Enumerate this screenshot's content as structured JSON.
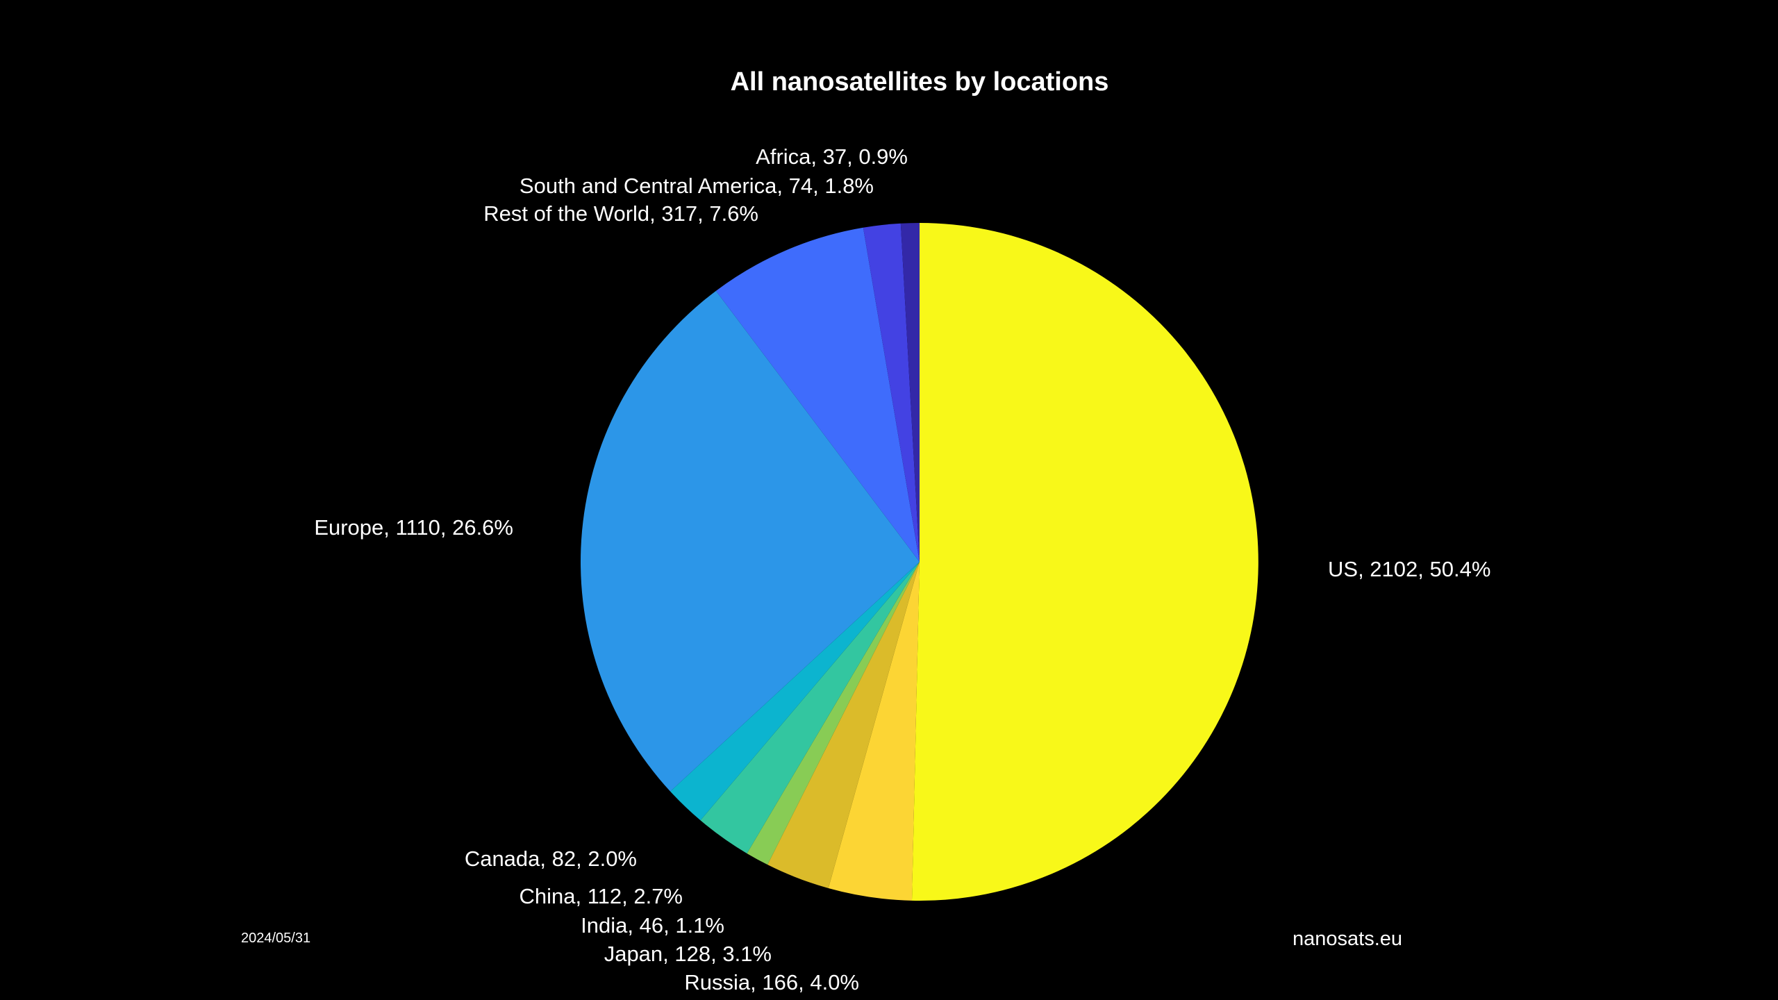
{
  "chart_data": {
    "type": "pie",
    "title": "All nanosatellites by locations",
    "start_angle": "top",
    "direction": "clockwise",
    "slices": [
      {
        "name": "US",
        "value": 2102,
        "percent": "50.4%",
        "label": "US, 2102, 50.4%",
        "color": "#f8f819"
      },
      {
        "name": "Russia",
        "value": 166,
        "percent": "4.0%",
        "label": "Russia, 166, 4.0%",
        "color": "#fcd534"
      },
      {
        "name": "Japan",
        "value": 128,
        "percent": "3.1%",
        "label": "Japan, 128, 3.1%",
        "color": "#dbbb2a"
      },
      {
        "name": "India",
        "value": 46,
        "percent": "1.1%",
        "label": "India, 46, 1.1%",
        "color": "#88cc55"
      },
      {
        "name": "China",
        "value": 112,
        "percent": "2.7%",
        "label": "China, 112, 2.7%",
        "color": "#33c6a0"
      },
      {
        "name": "Canada",
        "value": 82,
        "percent": "2.0%",
        "label": "Canada, 82, 2.0%",
        "color": "#0cb4cf"
      },
      {
        "name": "Europe",
        "value": 1110,
        "percent": "26.6%",
        "label": "Europe, 1110, 26.6%",
        "color": "#2c96e8"
      },
      {
        "name": "Rest of the World",
        "value": 317,
        "percent": "7.6%",
        "label": "Rest of the World, 317, 7.6%",
        "color": "#3f6cfc"
      },
      {
        "name": "South and Central America",
        "value": 74,
        "percent": "1.8%",
        "label": "South and Central America, 74, 1.8%",
        "color": "#4342e3"
      },
      {
        "name": "Africa",
        "value": 37,
        "percent": "0.9%",
        "label": "Africa, 37, 0.9%",
        "color": "#3328a8"
      }
    ]
  },
  "footer": {
    "date": "2024/05/31",
    "source": "nanosats.eu"
  }
}
